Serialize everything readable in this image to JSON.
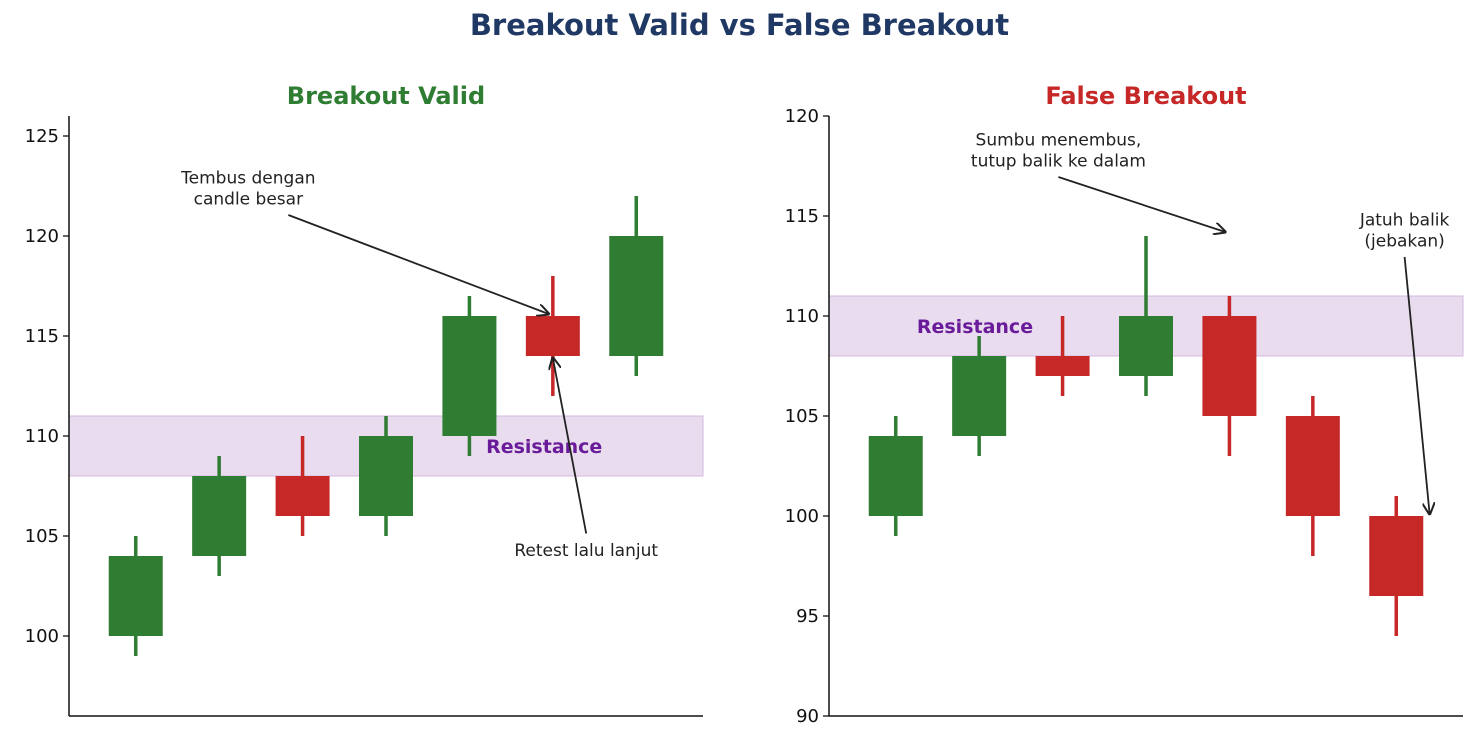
{
  "figure": {
    "title": "Breakout Valid vs False Breakout"
  },
  "colors": {
    "title": "#1f3864",
    "up": "#2e7d32",
    "down": "#c62828",
    "resistance_fill": "#e8dcee",
    "resistance_edge": "#d4b8e0",
    "resistance_text": "#6a1b9a",
    "annotation": "#222222"
  },
  "chart_data": [
    {
      "type": "candlestick",
      "title": "Breakout Valid",
      "title_color": "#2e7d32",
      "xlabel": "",
      "ylabel": "",
      "ylim": [
        96,
        126
      ],
      "y_ticks": [
        100,
        105,
        110,
        115,
        120,
        125
      ],
      "grid": false,
      "candles": [
        {
          "open": 100,
          "high": 105,
          "low": 99,
          "close": 104
        },
        {
          "open": 104,
          "high": 109,
          "low": 103,
          "close": 108
        },
        {
          "open": 108,
          "high": 110,
          "low": 105,
          "close": 106
        },
        {
          "open": 106,
          "high": 111,
          "low": 105,
          "close": 110
        },
        {
          "open": 110,
          "high": 117,
          "low": 109,
          "close": 116
        },
        {
          "open": 116,
          "high": 118,
          "low": 112,
          "close": 114
        },
        {
          "open": 114,
          "high": 122,
          "low": 113,
          "close": 120
        }
      ],
      "resistance": {
        "label": "Resistance",
        "low": 108,
        "high": 111
      },
      "annotations": [
        {
          "lines": [
            "Tembus dengan",
            "candle besar"
          ],
          "text_x": 1.35,
          "text_y": 122.4,
          "target_x": 4.95,
          "target_y": 116.1
        },
        {
          "lines": [
            "Retest lalu lanjut"
          ],
          "text_x": 5.4,
          "text_y": 104.3,
          "target_x": 5.0,
          "target_y": 113.9
        }
      ]
    },
    {
      "type": "candlestick",
      "title": "False Breakout",
      "title_color": "#c62828",
      "xlabel": "",
      "ylabel": "",
      "ylim": [
        90,
        120
      ],
      "y_ticks": [
        90,
        95,
        100,
        105,
        110,
        115,
        120
      ],
      "grid": false,
      "candles": [
        {
          "open": 100,
          "high": 105,
          "low": 99,
          "close": 104
        },
        {
          "open": 104,
          "high": 109,
          "low": 103,
          "close": 108
        },
        {
          "open": 108,
          "high": 110,
          "low": 106,
          "close": 107
        },
        {
          "open": 107,
          "high": 114,
          "low": 106,
          "close": 110
        },
        {
          "open": 110,
          "high": 111,
          "low": 103,
          "close": 105
        },
        {
          "open": 105,
          "high": 106,
          "low": 98,
          "close": 100
        },
        {
          "open": 100,
          "high": 101,
          "low": 94,
          "close": 96
        }
      ],
      "resistance": {
        "label": "Resistance",
        "low": 108,
        "high": 111
      },
      "annotations": [
        {
          "lines": [
            "Sumbu menembus,",
            "tutup balik ke dalam"
          ],
          "text_x": 1.95,
          "text_y": 118.3,
          "target_x": 3.95,
          "target_y": 114.2
        },
        {
          "lines": [
            "Jatuh balik",
            "(jebakan)"
          ],
          "text_x": 6.1,
          "text_y": 114.3,
          "target_x": 6.4,
          "target_y": 100.1
        }
      ]
    }
  ]
}
